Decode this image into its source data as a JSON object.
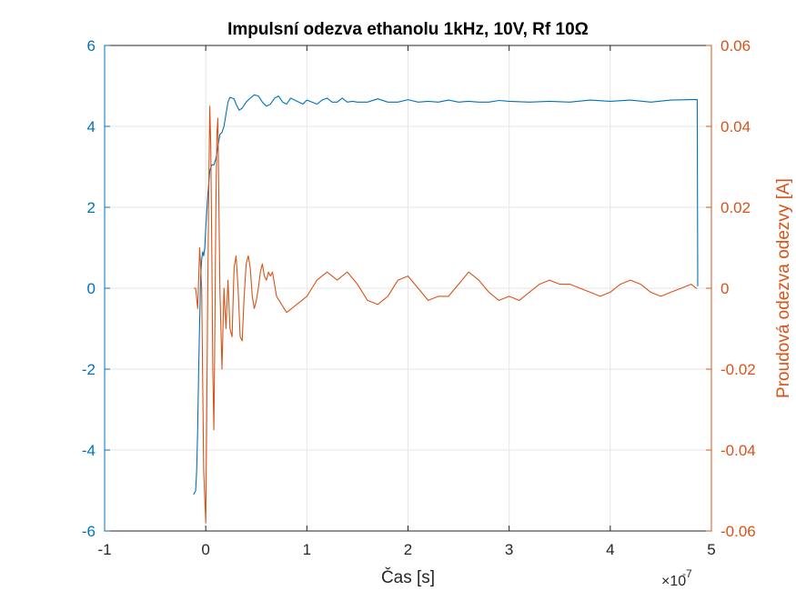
{
  "chart_data": {
    "type": "line",
    "title": "Impulsní odezva ethanolu 1kHz, 10V, Rf 10Ω",
    "xlabel": "Čas [s]",
    "x_exponent_base": "×10",
    "x_exponent_power": "-7",
    "x_scale": 1e-07,
    "xlim": [
      -1,
      5
    ],
    "x_ticks": [
      "-1",
      "0",
      "1",
      "2",
      "3",
      "4",
      "5"
    ],
    "ylabel_left": "",
    "ylim_left": [
      -6,
      6
    ],
    "y_ticks_left": [
      "-6",
      "-4",
      "-2",
      "0",
      "2",
      "4",
      "6"
    ],
    "ylabel_right": "Proudová odezva odezvy [A]",
    "ylim_right": [
      -0.06,
      0.06
    ],
    "y_ticks_right": [
      "-0.06",
      "-0.04",
      "-0.02",
      "0",
      "0.02",
      "0.04",
      "0.06"
    ],
    "grid": true,
    "colors": {
      "left": "#0072BD",
      "right": "#D95319",
      "axis": "#262626",
      "grid": "#E6E6E6"
    },
    "series": [
      {
        "axis": "left",
        "x": [
          -0.12,
          -0.1,
          -0.09,
          -0.08,
          -0.07,
          -0.06,
          -0.05,
          -0.04,
          -0.03,
          -0.02,
          -0.01,
          0.0,
          0.02,
          0.04,
          0.06,
          0.08,
          0.1,
          0.12,
          0.14,
          0.16,
          0.18,
          0.2,
          0.22,
          0.24,
          0.26,
          0.28,
          0.3,
          0.33,
          0.36,
          0.4,
          0.44,
          0.48,
          0.52,
          0.56,
          0.6,
          0.64,
          0.68,
          0.72,
          0.76,
          0.8,
          0.84,
          0.88,
          0.92,
          0.96,
          1.0,
          1.05,
          1.1,
          1.15,
          1.2,
          1.25,
          1.3,
          1.35,
          1.4,
          1.45,
          1.5,
          1.6,
          1.7,
          1.8,
          1.9,
          2.0,
          2.1,
          2.2,
          2.3,
          2.4,
          2.5,
          2.6,
          2.7,
          2.8,
          2.9,
          3.0,
          3.2,
          3.4,
          3.6,
          3.8,
          4.0,
          4.2,
          4.4,
          4.6,
          4.8,
          4.85,
          4.86,
          4.865
        ],
        "values": [
          -5.1,
          -5.0,
          -4.5,
          -3.5,
          -2.0,
          -0.8,
          0.3,
          0.7,
          0.9,
          0.8,
          1.0,
          1.5,
          2.3,
          2.9,
          3.05,
          3.05,
          3.2,
          3.5,
          3.8,
          3.85,
          4.0,
          4.3,
          4.6,
          4.72,
          4.7,
          4.68,
          4.55,
          4.4,
          4.45,
          4.6,
          4.7,
          4.78,
          4.75,
          4.6,
          4.5,
          4.55,
          4.7,
          4.75,
          4.6,
          4.55,
          4.7,
          4.65,
          4.6,
          4.55,
          4.65,
          4.6,
          4.55,
          4.65,
          4.7,
          4.6,
          4.6,
          4.7,
          4.6,
          4.62,
          4.6,
          4.6,
          4.68,
          4.6,
          4.6,
          4.66,
          4.6,
          4.62,
          4.6,
          4.65,
          4.6,
          4.62,
          4.6,
          4.6,
          4.64,
          4.62,
          4.6,
          4.62,
          4.6,
          4.65,
          4.62,
          4.65,
          4.6,
          4.65,
          4.66,
          4.66,
          4.66,
          0.05
        ]
      },
      {
        "axis": "right",
        "x": [
          -0.12,
          -0.1,
          -0.08,
          -0.06,
          -0.04,
          -0.02,
          0.0,
          0.01,
          0.02,
          0.03,
          0.04,
          0.05,
          0.06,
          0.07,
          0.08,
          0.09,
          0.1,
          0.11,
          0.12,
          0.14,
          0.16,
          0.18,
          0.2,
          0.22,
          0.24,
          0.26,
          0.28,
          0.3,
          0.32,
          0.34,
          0.36,
          0.38,
          0.4,
          0.42,
          0.44,
          0.46,
          0.48,
          0.5,
          0.52,
          0.54,
          0.56,
          0.58,
          0.6,
          0.62,
          0.64,
          0.66,
          0.7,
          0.75,
          0.8,
          0.85,
          0.9,
          0.95,
          1.0,
          1.05,
          1.1,
          1.15,
          1.2,
          1.25,
          1.3,
          1.35,
          1.4,
          1.5,
          1.6,
          1.7,
          1.8,
          1.9,
          2.0,
          2.1,
          2.2,
          2.3,
          2.4,
          2.5,
          2.6,
          2.7,
          2.8,
          2.9,
          3.0,
          3.1,
          3.2,
          3.3,
          3.4,
          3.5,
          3.6,
          3.7,
          3.8,
          3.9,
          4.0,
          4.1,
          4.2,
          4.3,
          4.4,
          4.5,
          4.6,
          4.7,
          4.8,
          4.85,
          4.86
        ],
        "values": [
          0.0,
          0.0,
          -0.005,
          0.01,
          0.0,
          -0.045,
          -0.058,
          -0.03,
          0.0,
          0.025,
          0.045,
          0.035,
          0.01,
          -0.02,
          -0.035,
          -0.01,
          0.02,
          0.038,
          0.042,
          0.0,
          -0.02,
          0.0,
          -0.01,
          0.002,
          -0.01,
          -0.012,
          0.005,
          0.008,
          0.0,
          -0.012,
          -0.013,
          -0.002,
          0.006,
          0.008,
          0.005,
          -0.002,
          -0.005,
          -0.003,
          0.0,
          0.004,
          0.006,
          0.003,
          0.002,
          0.004,
          0.003,
          0.004,
          -0.002,
          -0.004,
          -0.006,
          -0.005,
          -0.004,
          -0.003,
          -0.002,
          0.0,
          0.002,
          0.003,
          0.004,
          0.003,
          0.002,
          0.003,
          0.004,
          0.001,
          -0.003,
          -0.004,
          -0.002,
          0.002,
          0.003,
          0.0,
          -0.003,
          -0.002,
          -0.002,
          0.001,
          0.004,
          0.002,
          -0.001,
          -0.003,
          -0.002,
          -0.003,
          -0.001,
          0.001,
          0.002,
          0.001,
          0.001,
          0.0,
          -0.001,
          -0.002,
          -0.001,
          0.001,
          0.002,
          0.001,
          -0.001,
          -0.002,
          -0.001,
          0.0,
          0.001,
          0.0,
          0.0
        ]
      }
    ]
  }
}
